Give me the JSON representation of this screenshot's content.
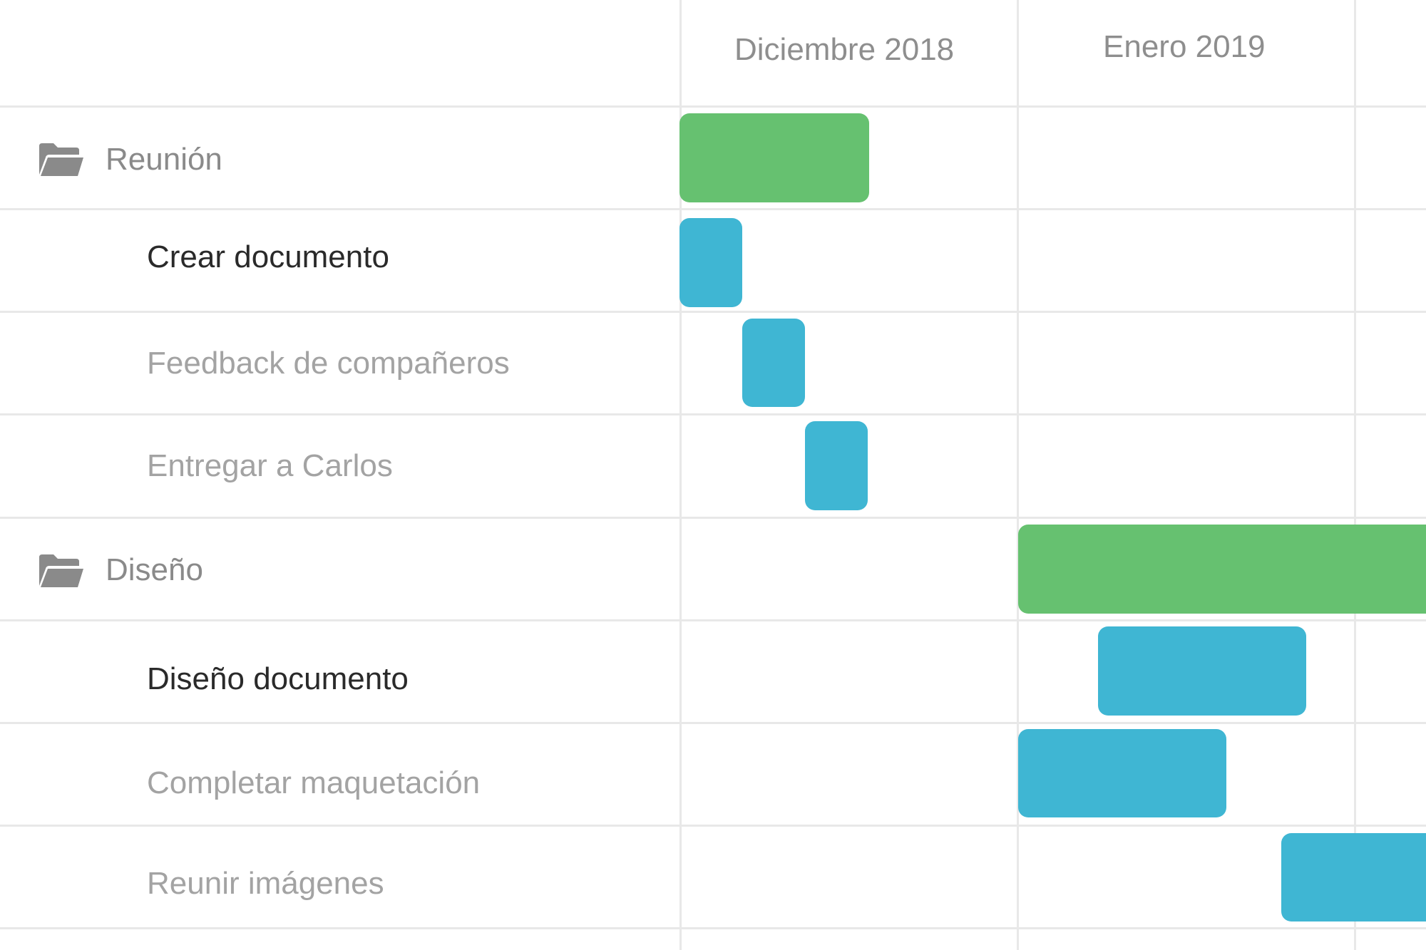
{
  "months": [
    {
      "label": "Diciembre 2018"
    },
    {
      "label": "Enero 2019"
    }
  ],
  "colors": {
    "group_bar": "#66c170",
    "task_bar": "#3fb6d3",
    "grid": "#e8e8e8",
    "group_text": "#8a8a8a",
    "selected_text": "#2a2a2a",
    "task_text": "#a3a3a3"
  },
  "rows": [
    {
      "label": "Reunión",
      "kind": "group",
      "icon": "folder-open-icon"
    },
    {
      "label": "Crear documento",
      "kind": "task",
      "selected": true
    },
    {
      "label": "Feedback de compañeros",
      "kind": "task"
    },
    {
      "label": "Entregar a Carlos",
      "kind": "task"
    },
    {
      "label": "Diseño",
      "kind": "group",
      "icon": "folder-open-icon"
    },
    {
      "label": "Diseño documento",
      "kind": "task",
      "selected": true
    },
    {
      "label": "Completar maquetación",
      "kind": "task"
    },
    {
      "label": "Reunir imágenes",
      "kind": "task"
    }
  ]
}
